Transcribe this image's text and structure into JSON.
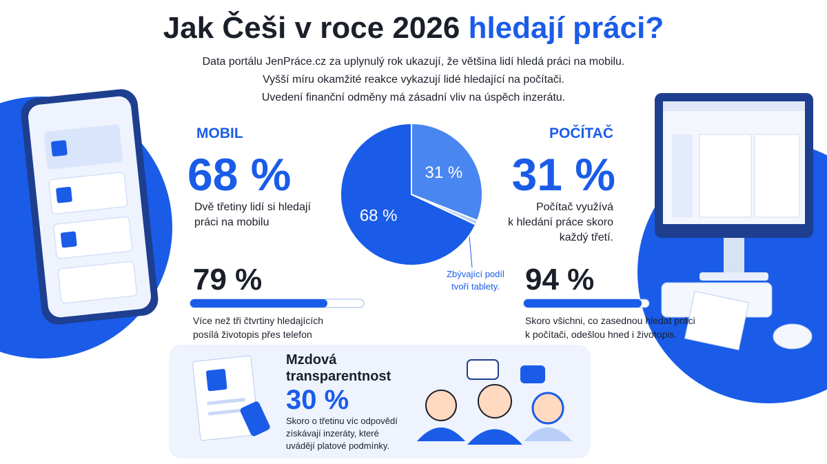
{
  "header": {
    "title_start": "Jak Češi v roce 2026",
    "title_highlight": "hledají práci?",
    "lines": [
      "Data portálu JenPráce.cz za uplynulý rok ukazují, že většina lidí hledá práci na mobilu.",
      "Vyšší míru okamžité reakce vykazují lidé hledající na počítači.",
      "Uvedení finanční odměny má zásadní vliv na úspěch inzerátu."
    ]
  },
  "mobile": {
    "label": "MOBIL",
    "share": "68 %",
    "description": [
      "Dvě třetiny lidí si hledají",
      "práci na mobilu"
    ],
    "stat": {
      "value": 79,
      "label": "79 %"
    },
    "stat_description": [
      "Více než tři čtvrtiny hledajících",
      "posílá životopis přes telefon"
    ]
  },
  "computer": {
    "label": "POČÍTAČ",
    "share": "31 %",
    "description": [
      "Počítač využívá",
      "k hledání práce skoro",
      "každý třetí."
    ],
    "stat": {
      "value": 94,
      "label": "94 %"
    },
    "stat_description": [
      "Skoro všichni, co zasednou hledat práci",
      "k počítači, odešlou hned i životopis."
    ]
  },
  "chart_data": {
    "type": "pie",
    "values": [
      31,
      1,
      68
    ],
    "value_labels": [
      "31 %",
      null,
      "68 %"
    ],
    "colors": [
      "#4a86f0",
      "#b9cff8",
      "#1a5ce8"
    ],
    "annotation": [
      "Zbývající podíl",
      "tvoří tablety."
    ]
  },
  "wage": {
    "title": [
      "Mzdová",
      "transparentnost"
    ],
    "value": "30 %",
    "description": [
      "Skoro o třetinu víc odpovědí",
      "získávají inzeráty, které",
      "uvádějí platové podmínky."
    ]
  }
}
